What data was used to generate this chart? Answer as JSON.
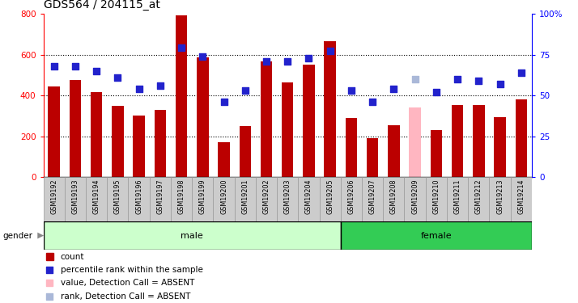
{
  "title": "GDS564 / 204115_at",
  "samples": [
    "GSM19192",
    "GSM19193",
    "GSM19194",
    "GSM19195",
    "GSM19196",
    "GSM19197",
    "GSM19198",
    "GSM19199",
    "GSM19200",
    "GSM19201",
    "GSM19202",
    "GSM19203",
    "GSM19204",
    "GSM19205",
    "GSM19206",
    "GSM19207",
    "GSM19208",
    "GSM19209",
    "GSM19210",
    "GSM19211",
    "GSM19212",
    "GSM19213",
    "GSM19214"
  ],
  "bar_values": [
    445,
    475,
    415,
    350,
    300,
    330,
    790,
    585,
    170,
    250,
    565,
    465,
    550,
    665,
    290,
    190,
    255,
    340,
    230,
    355,
    355,
    295,
    380
  ],
  "bar_absent": [
    false,
    false,
    false,
    false,
    false,
    false,
    false,
    false,
    false,
    false,
    false,
    false,
    false,
    false,
    false,
    false,
    false,
    true,
    false,
    false,
    false,
    false,
    false
  ],
  "percentile_values_pct": [
    68,
    68,
    65,
    61,
    54,
    56,
    79,
    74,
    46,
    53,
    71,
    71,
    73,
    77,
    53,
    46,
    54,
    60,
    52,
    60,
    59,
    57,
    64
  ],
  "percentile_absent": [
    false,
    false,
    false,
    false,
    false,
    false,
    false,
    false,
    false,
    false,
    false,
    false,
    false,
    false,
    false,
    false,
    false,
    true,
    false,
    false,
    false,
    false,
    false
  ],
  "gender": [
    "male",
    "male",
    "male",
    "male",
    "male",
    "male",
    "male",
    "male",
    "male",
    "male",
    "male",
    "male",
    "male",
    "male",
    "female",
    "female",
    "female",
    "female",
    "female",
    "female",
    "female",
    "female",
    "female"
  ],
  "bar_color_normal": "#bb0000",
  "bar_color_absent": "#ffb6c1",
  "dot_color_normal": "#2222cc",
  "dot_color_absent": "#aab8d8",
  "male_bg": "#ccffcc",
  "female_bg": "#33cc55",
  "tick_bg": "#cccccc",
  "ylim_left": [
    0,
    800
  ],
  "ylim_right": [
    0,
    100
  ],
  "yticks_left": [
    0,
    200,
    400,
    600,
    800
  ],
  "yticks_right": [
    0,
    25,
    50,
    75,
    100
  ],
  "ytick_labels_right": [
    "0",
    "25",
    "50",
    "75",
    "100%"
  ],
  "grid_values": [
    200,
    400,
    600
  ],
  "dot_size": 40,
  "title_fontsize": 10,
  "legend_items": [
    "count",
    "percentile rank within the sample",
    "value, Detection Call = ABSENT",
    "rank, Detection Call = ABSENT"
  ],
  "legend_colors": [
    "#bb0000",
    "#2222cc",
    "#ffb6c1",
    "#aab8d8"
  ]
}
